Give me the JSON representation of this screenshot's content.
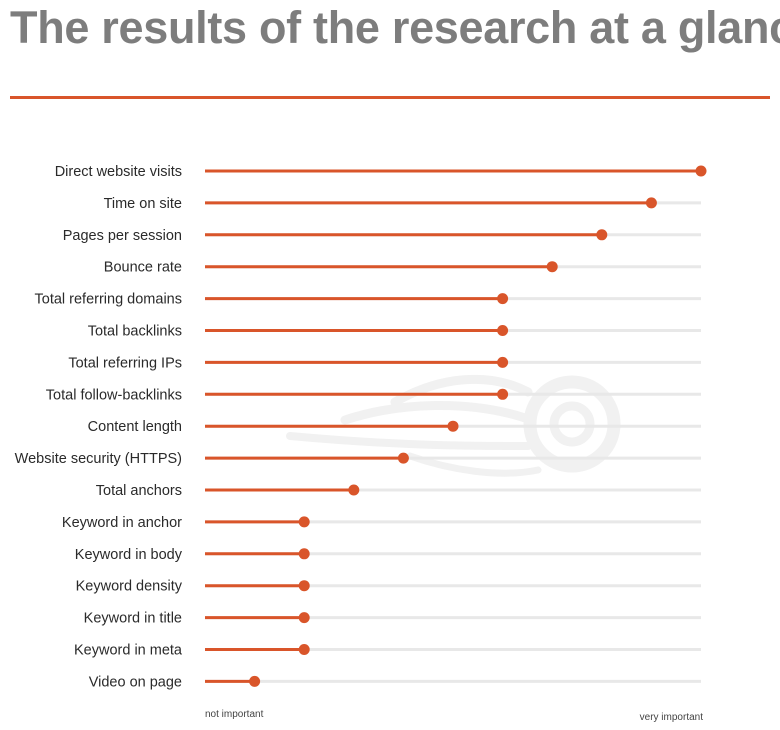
{
  "page": {
    "title": "The results of the research at a glance"
  },
  "colors": {
    "accent": "#d9552a",
    "track": "#e8e8e8",
    "title": "#7d7d7d",
    "watermark": "#f1f1f1"
  },
  "chart_data": {
    "type": "scatter",
    "orientation": "horizontal",
    "style": "lollipop",
    "title": "",
    "xlabel": "",
    "ylabel": "",
    "scale_min_label": "not important",
    "scale_max_label": "very important",
    "xlim": [
      0,
      100
    ],
    "grid": false,
    "legend": "none",
    "categories": [
      "Direct website visits",
      "Time on site",
      "Pages per session",
      "Bounce rate",
      "Total referring domains",
      "Total backlinks",
      "Total referring IPs",
      "Total follow-backlinks",
      "Content length",
      "Website security (HTTPS)",
      "Total anchors",
      "Keyword in anchor",
      "Keyword in body",
      "Keyword density",
      "Keyword in title",
      "Keyword in meta",
      "Video on page"
    ],
    "values": [
      100,
      90,
      80,
      70,
      60,
      60,
      60,
      60,
      50,
      40,
      30,
      20,
      20,
      20,
      20,
      20,
      10
    ]
  }
}
